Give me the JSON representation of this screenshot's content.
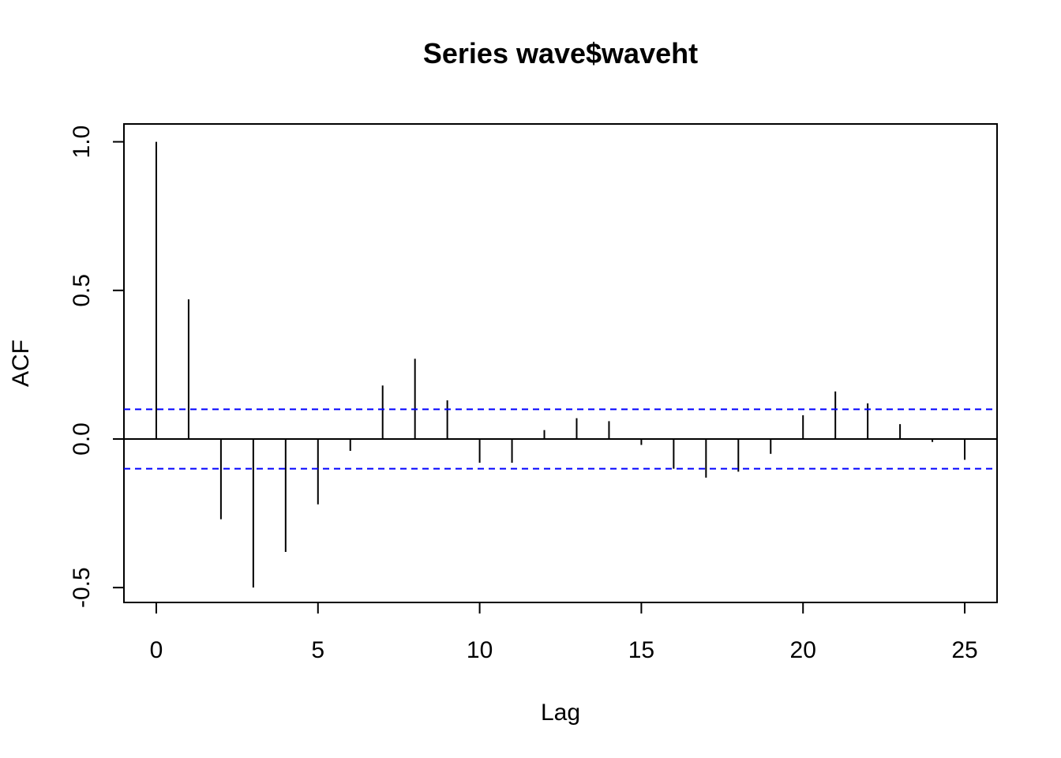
{
  "chart_data": {
    "type": "bar",
    "title": "Series  wave$waveht",
    "xlabel": "Lag",
    "ylabel": "ACF",
    "xlim": [
      -1,
      26
    ],
    "ylim": [
      -0.55,
      1.06
    ],
    "x_ticks": [
      0,
      5,
      10,
      15,
      20,
      25
    ],
    "y_ticks": [
      -0.5,
      0.0,
      0.5,
      1.0
    ],
    "x_tick_labels": [
      "0",
      "5",
      "10",
      "15",
      "20",
      "25"
    ],
    "y_tick_labels": [
      "-0.5",
      "0.0",
      "0.5",
      "1.0"
    ],
    "lags": [
      0,
      1,
      2,
      3,
      4,
      5,
      6,
      7,
      8,
      9,
      10,
      11,
      12,
      13,
      14,
      15,
      16,
      17,
      18,
      19,
      20,
      21,
      22,
      23,
      24,
      25
    ],
    "values": [
      1.0,
      0.47,
      -0.27,
      -0.5,
      -0.38,
      -0.22,
      -0.04,
      0.18,
      0.27,
      0.13,
      -0.08,
      -0.08,
      0.03,
      0.07,
      0.06,
      -0.02,
      -0.1,
      -0.13,
      -0.11,
      -0.05,
      0.08,
      0.16,
      0.12,
      0.05,
      -0.01,
      -0.07
    ],
    "confidence_bound": 0.1,
    "zero_line": true,
    "grid": false,
    "colors": {
      "bars": "#000000",
      "confidence": "#0000ff",
      "frame": "#000000"
    }
  }
}
